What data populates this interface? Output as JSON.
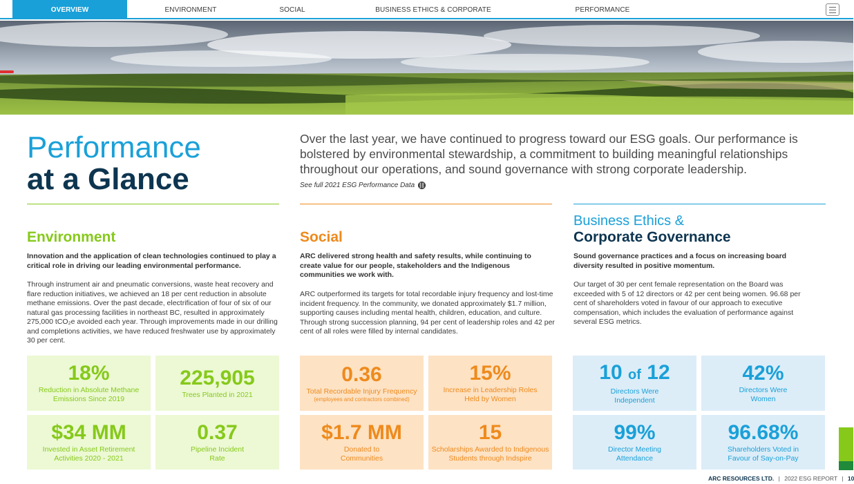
{
  "nav": {
    "items": [
      {
        "label": "OVERVIEW",
        "active": true
      },
      {
        "label": "ENVIRONMENT",
        "active": false
      },
      {
        "label": "SOCIAL",
        "active": false
      },
      {
        "label": "BUSINESS ETHICS & CORPORATE GOVERNANCE",
        "active": false
      },
      {
        "label": "PERFORMANCE",
        "active": false
      }
    ],
    "menu_icon": "hamburger-menu-icon",
    "accent_color": "#1aa0d8"
  },
  "hero": {
    "image": "aerial landscape of green fields and forest under cloudy sky"
  },
  "page": {
    "title_light": "Performance",
    "title_bold": "at a Glance",
    "intro": "Over the last year, we have continued to progress toward our ESG goals. Our performance is bolstered by environmental stewardship, a commitment to building meaningful relationships throughout our operations, and sound governance with strong corporate leadership.",
    "see_full_link": "See full 2021 ESG Performance Data",
    "link_icon": "link-icon"
  },
  "environment": {
    "title": "Environment",
    "color": "#86c91a",
    "lead": "Innovation and the application of clean technologies continued to play a critical role in driving our leading environmental performance.",
    "body": "Through instrument air and pneumatic conversions, waste heat recovery and flare reduction initiatives, we achieved an 18 per cent reduction in absolute methane emissions. Over the past decade, electrification of four of six of our natural gas processing facilities in northeast BC, resulted in approximately 275,000 tCO₂e avoided each year. Through improvements made in our drilling and completions activities, we have reduced freshwater use by approximately 30 per cent.",
    "stats": [
      {
        "value": "18%",
        "label": "Reduction in Absolute Methane Emissions Since 2019"
      },
      {
        "value": "225,905",
        "label": "Trees Planted in 2021"
      },
      {
        "value": "$34 MM",
        "label": "Invested in Asset Retirement Activities 2020 - 2021"
      },
      {
        "value": "0.37",
        "label": "Pipeline Incident Rate"
      }
    ]
  },
  "social": {
    "title": "Social",
    "color": "#ee8a1c",
    "lead": "ARC delivered strong health and safety results, while continuing to create value for our people, stakeholders and the Indigenous communities we work with.",
    "body": "ARC outperformed its targets for total recordable injury frequency and lost-time incident frequency. In the community, we donated approximately $1.7 million, supporting causes including mental health, children, education, and culture. Through strong succession planning, 94 per cent of leadership roles and 42 per cent of all roles were filled by internal candidates.",
    "stats": [
      {
        "value": "0.36",
        "label": "Total Recordable Injury Frequency",
        "sub": "(employees and contractors combined)"
      },
      {
        "value": "15%",
        "label": "Increase in Leadership Roles Held by Women"
      },
      {
        "value": "$1.7 MM",
        "label": "Donated to Communities"
      },
      {
        "value": "15",
        "label": "Scholarships Awarded to Indigenous Students through Indspire"
      }
    ]
  },
  "governance": {
    "title_light": "Business Ethics &",
    "title_bold": "Corporate Governance",
    "color": "#1aa0d8",
    "lead": "Sound governance practices and a focus on increasing board diversity resulted in positive momentum.",
    "body": "Our target of 30 per cent female representation on the Board was exceeded with 5 of 12 directors or 42 per cent being women. 96.68 per cent of shareholders voted in favour of our approach to executive compensation, which includes the evaluation of performance against several ESG metrics.",
    "stats": [
      {
        "value_a": "10",
        "value_of": "of",
        "value_b": "12",
        "label": "Directors Were Independent"
      },
      {
        "value": "42%",
        "label": "Directors Were Women"
      },
      {
        "value": "99%",
        "label": "Director Meeting Attendance"
      },
      {
        "value": "96.68%",
        "label": "Shareholders Voted in Favour of Say-on-Pay"
      }
    ]
  },
  "footer": {
    "company": "ARC RESOURCES LTD.",
    "sep": "|",
    "report": "2022 ESG REPORT",
    "page": "10"
  }
}
